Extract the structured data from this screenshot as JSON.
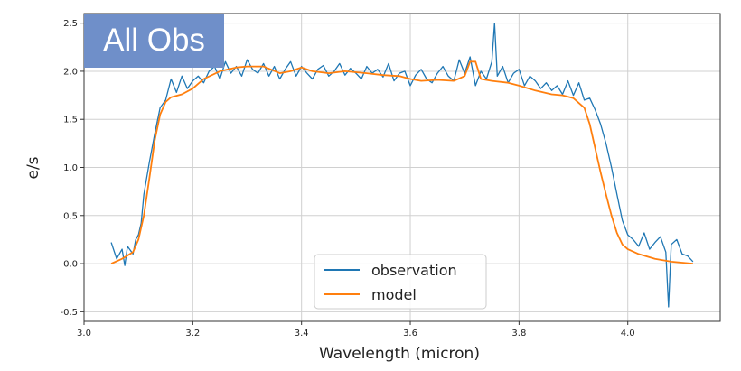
{
  "badge": {
    "text": "All Obs"
  },
  "colors": {
    "observation": "#1f77b4",
    "model": "#ff7f0e",
    "badge_bg": "#6f8fc9",
    "grid": "#d0d0d0"
  },
  "chart_data": {
    "type": "line",
    "title": "",
    "xlabel": "Wavelength (micron)",
    "ylabel": "e/s",
    "xlim": [
      3.0,
      4.17
    ],
    "ylim": [
      -0.6,
      2.6
    ],
    "xticks": [
      3.0,
      3.2,
      3.4,
      3.6,
      3.8,
      4.0
    ],
    "xtick_labels": [
      "3.0",
      "3.2",
      "3.4",
      "3.6",
      "3.8",
      "4.0"
    ],
    "yticks": [
      -0.5,
      0.0,
      0.5,
      1.0,
      1.5,
      2.0,
      2.5
    ],
    "ytick_labels": [
      "-0.5",
      "0.0",
      "0.5",
      "1.0",
      "1.5",
      "2.0",
      "2.5"
    ],
    "grid": true,
    "legend_position": "lower-center",
    "series": [
      {
        "name": "observation",
        "color": "#1f77b4",
        "x": [
          3.05,
          3.06,
          3.07,
          3.075,
          3.08,
          3.09,
          3.095,
          3.1,
          3.105,
          3.11,
          3.12,
          3.13,
          3.14,
          3.15,
          3.16,
          3.17,
          3.18,
          3.19,
          3.2,
          3.21,
          3.22,
          3.23,
          3.24,
          3.25,
          3.26,
          3.27,
          3.28,
          3.29,
          3.3,
          3.31,
          3.32,
          3.33,
          3.34,
          3.35,
          3.36,
          3.37,
          3.38,
          3.39,
          3.4,
          3.41,
          3.42,
          3.43,
          3.44,
          3.45,
          3.46,
          3.47,
          3.48,
          3.49,
          3.5,
          3.51,
          3.52,
          3.53,
          3.54,
          3.55,
          3.56,
          3.57,
          3.58,
          3.59,
          3.6,
          3.61,
          3.62,
          3.63,
          3.64,
          3.65,
          3.66,
          3.67,
          3.68,
          3.69,
          3.7,
          3.71,
          3.72,
          3.73,
          3.74,
          3.75,
          3.755,
          3.76,
          3.77,
          3.78,
          3.79,
          3.8,
          3.81,
          3.82,
          3.83,
          3.84,
          3.85,
          3.86,
          3.87,
          3.88,
          3.89,
          3.9,
          3.91,
          3.92,
          3.93,
          3.94,
          3.95,
          3.96,
          3.97,
          3.98,
          3.99,
          4.0,
          4.01,
          4.02,
          4.03,
          4.04,
          4.05,
          4.06,
          4.07,
          4.075,
          4.08,
          4.09,
          4.1,
          4.11,
          4.12
        ],
        "y": [
          0.22,
          0.05,
          0.15,
          -0.02,
          0.18,
          0.1,
          0.25,
          0.3,
          0.42,
          0.72,
          1.05,
          1.35,
          1.62,
          1.7,
          1.92,
          1.78,
          1.95,
          1.82,
          1.9,
          1.95,
          1.88,
          2.0,
          2.05,
          1.92,
          2.1,
          1.98,
          2.05,
          1.95,
          2.12,
          2.02,
          1.98,
          2.08,
          1.95,
          2.05,
          1.92,
          2.02,
          2.1,
          1.95,
          2.05,
          1.98,
          1.92,
          2.02,
          2.06,
          1.95,
          2.0,
          2.08,
          1.96,
          2.03,
          1.98,
          1.92,
          2.05,
          1.98,
          2.02,
          1.94,
          2.08,
          1.9,
          1.98,
          2.0,
          1.85,
          1.96,
          2.02,
          1.92,
          1.88,
          1.98,
          2.05,
          1.95,
          1.9,
          2.12,
          1.98,
          2.15,
          1.85,
          2.0,
          1.92,
          2.1,
          2.5,
          1.95,
          2.05,
          1.88,
          1.98,
          2.02,
          1.85,
          1.95,
          1.9,
          1.82,
          1.88,
          1.8,
          1.85,
          1.76,
          1.9,
          1.75,
          1.88,
          1.7,
          1.72,
          1.6,
          1.45,
          1.25,
          1.0,
          0.72,
          0.45,
          0.3,
          0.25,
          0.18,
          0.32,
          0.15,
          0.22,
          0.28,
          0.12,
          -0.45,
          0.2,
          0.25,
          0.1,
          0.08,
          0.02
        ]
      },
      {
        "name": "model",
        "color": "#ff7f0e",
        "x": [
          3.05,
          3.07,
          3.09,
          3.1,
          3.11,
          3.12,
          3.13,
          3.14,
          3.15,
          3.16,
          3.18,
          3.2,
          3.22,
          3.25,
          3.28,
          3.3,
          3.33,
          3.36,
          3.38,
          3.4,
          3.42,
          3.45,
          3.48,
          3.5,
          3.52,
          3.55,
          3.58,
          3.6,
          3.62,
          3.65,
          3.68,
          3.7,
          3.71,
          3.72,
          3.73,
          3.75,
          3.78,
          3.8,
          3.83,
          3.86,
          3.88,
          3.9,
          3.92,
          3.93,
          3.94,
          3.95,
          3.96,
          3.97,
          3.98,
          3.99,
          4.0,
          4.02,
          4.05,
          4.08,
          4.1,
          4.12
        ],
        "y": [
          0.0,
          0.05,
          0.12,
          0.25,
          0.5,
          0.88,
          1.28,
          1.55,
          1.68,
          1.73,
          1.76,
          1.82,
          1.92,
          2.0,
          2.04,
          2.05,
          2.05,
          1.98,
          2.0,
          2.04,
          2.0,
          1.98,
          2.0,
          1.99,
          1.98,
          1.96,
          1.95,
          1.92,
          1.9,
          1.91,
          1.9,
          1.95,
          2.1,
          2.1,
          1.92,
          1.9,
          1.88,
          1.85,
          1.8,
          1.76,
          1.75,
          1.72,
          1.62,
          1.45,
          1.2,
          0.95,
          0.72,
          0.5,
          0.32,
          0.2,
          0.15,
          0.1,
          0.05,
          0.02,
          0.01,
          0.0
        ]
      }
    ]
  }
}
